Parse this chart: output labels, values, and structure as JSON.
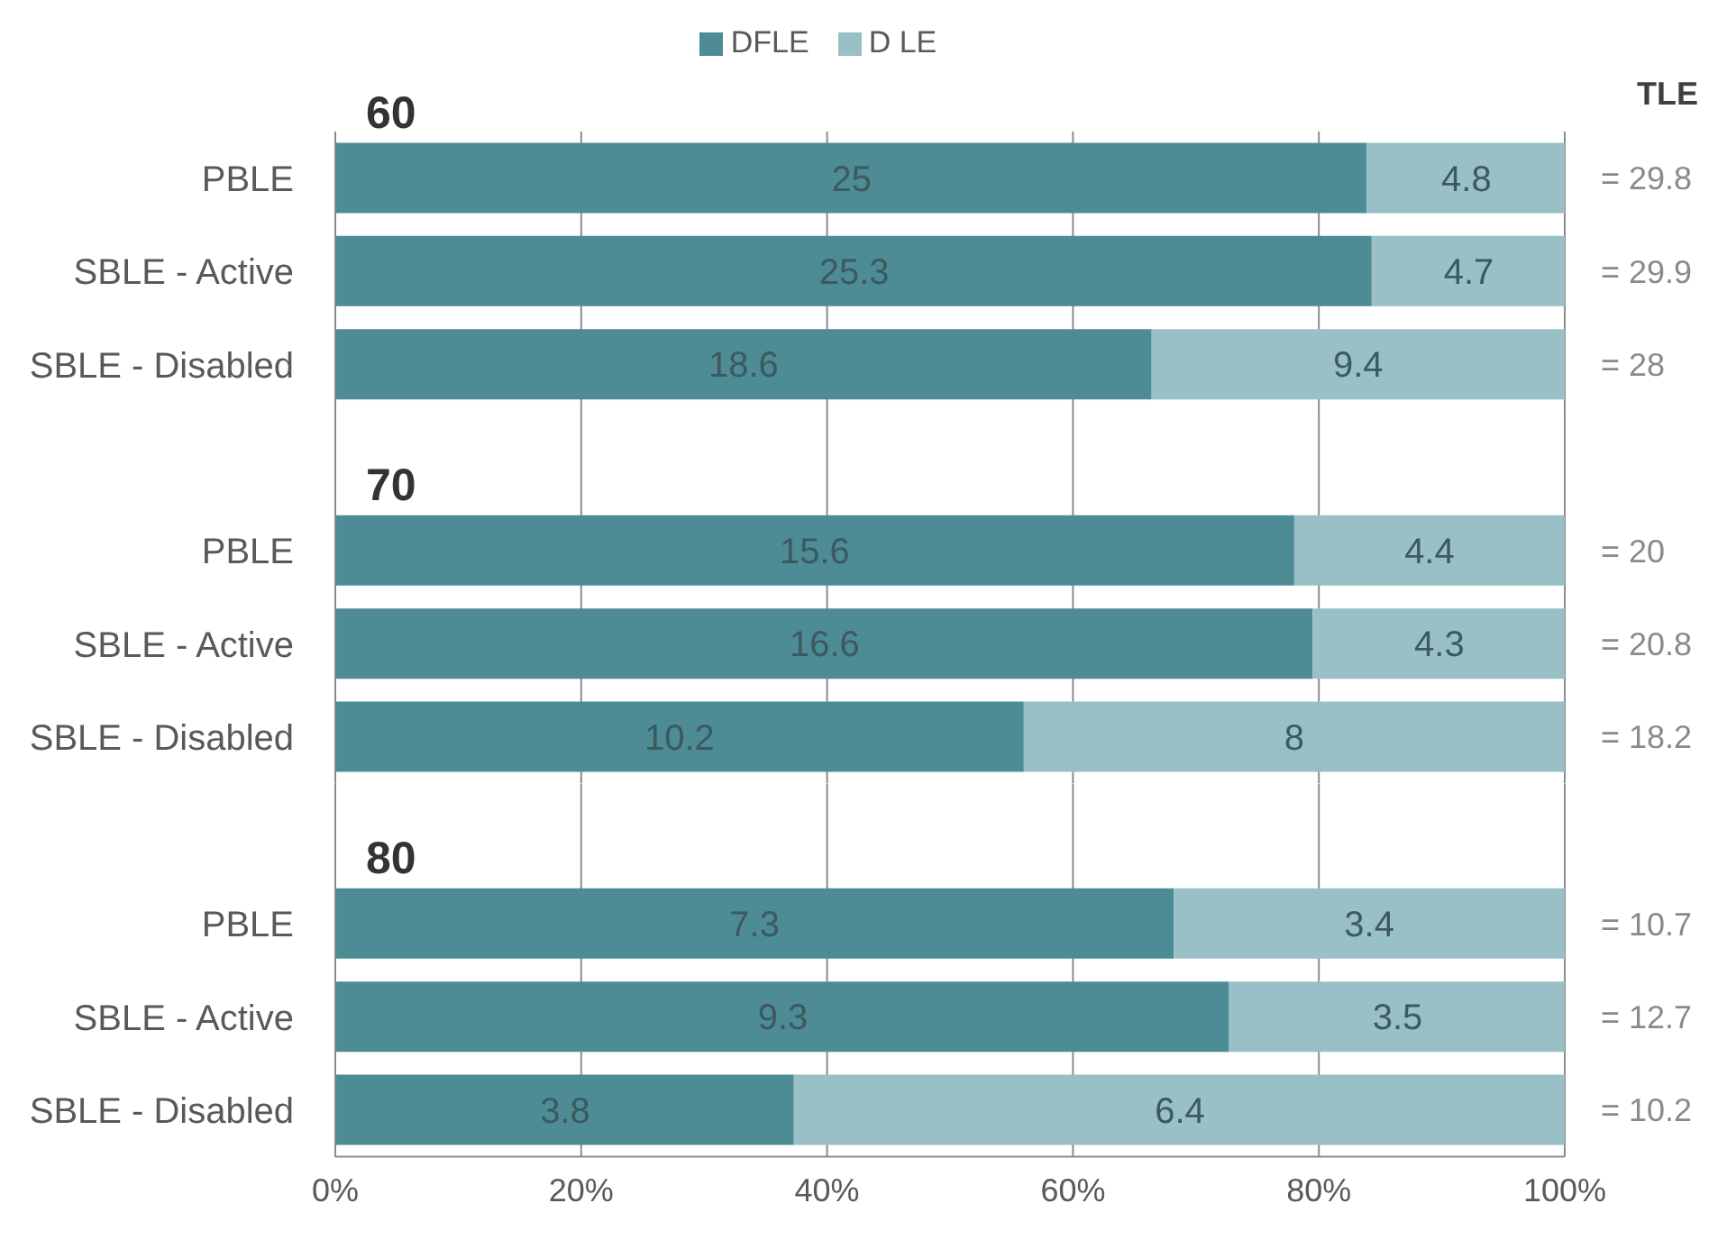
{
  "chart_data": [
    {
      "type": "bar",
      "orientation": "horizontal",
      "stacked": true,
      "title": "60",
      "categories": [
        "PBLE",
        "SBLE - Active",
        "SBLE - Disabled"
      ],
      "series": [
        {
          "name": "DFLE",
          "color": "#4d8b95",
          "values": [
            83.9,
            84.3,
            66.4
          ]
        },
        {
          "name": "D LE",
          "color": "#98c0c6",
          "values": [
            16.1,
            15.7,
            33.6
          ]
        }
      ],
      "xlim": [
        0,
        100
      ],
      "xticks": [
        {
          "value": 0,
          "label": null
        },
        {
          "value": 20,
          "label": null
        },
        {
          "value": 40,
          "label": null
        },
        {
          "value": 60,
          "label": null
        },
        {
          "value": 80,
          "label": null
        },
        {
          "value": 100,
          "label": null
        }
      ],
      "grid": "x",
      "legend": "top",
      "tick_labels": "y",
      "annotations": [
        "TLE",
        {
          "text": "25",
          "x": 42.0,
          "y": "PBLE"
        },
        {
          "text": "4.8",
          "x": 92.0,
          "y": "PBLE"
        },
        {
          "text": "= 29.8",
          "x": 100,
          "y": "PBLE"
        },
        {
          "text": "25.3",
          "x": 42.2,
          "y": "SBLE - Active"
        },
        {
          "text": "4.7",
          "x": 92.2,
          "y": "SBLE - Active"
        },
        {
          "text": "= 29.9",
          "x": 100,
          "y": "SBLE - Active"
        },
        {
          "text": "18.6",
          "x": 33.2,
          "y": "SBLE - Disabled"
        },
        {
          "text": "9.4",
          "x": 83.2,
          "y": "SBLE - Disabled"
        },
        {
          "text": "= 28",
          "x": 100,
          "y": "SBLE - Disabled"
        }
      ]
    },
    {
      "type": "bar",
      "orientation": "horizontal",
      "stacked": true,
      "title": "70",
      "categories": [
        "PBLE",
        "SBLE - Active",
        "SBLE - Disabled"
      ],
      "series": [
        {
          "color": "#4d8b95",
          "values": [
            78.0,
            79.5,
            56.0
          ]
        },
        {
          "color": "#98c0c6",
          "values": [
            22.0,
            20.5,
            44.0
          ]
        }
      ],
      "xlim": [
        0,
        100
      ],
      "xticks": [
        {
          "value": 0,
          "label": null
        },
        {
          "value": 20,
          "label": null
        },
        {
          "value": 40,
          "label": null
        },
        {
          "value": 60,
          "label": null
        },
        {
          "value": 80,
          "label": null
        },
        {
          "value": 100,
          "label": null
        }
      ],
      "grid": "x",
      "tick_labels": "y",
      "annotations": [
        {
          "text": "15.6",
          "x": 39.0,
          "y": "PBLE"
        },
        {
          "text": "4.4",
          "x": 89.0,
          "y": "PBLE"
        },
        {
          "text": "= 20",
          "x": 100,
          "y": "PBLE"
        },
        {
          "text": "16.6",
          "x": 39.8,
          "y": "SBLE - Active"
        },
        {
          "text": "4.3",
          "x": 89.8,
          "y": "SBLE - Active"
        },
        {
          "text": "= 20.8",
          "x": 100,
          "y": "SBLE - Active"
        },
        {
          "text": "10.2",
          "x": 28.0,
          "y": "SBLE - Disabled"
        },
        {
          "text": "8",
          "x": 78.0,
          "y": "SBLE - Disabled"
        },
        {
          "text": "= 18.2",
          "x": 100,
          "y": "SBLE - Disabled"
        }
      ]
    },
    {
      "type": "bar",
      "orientation": "horizontal",
      "stacked": true,
      "title": "80",
      "categories": [
        "PBLE",
        "SBLE - Active",
        "SBLE - Disabled"
      ],
      "series": [
        {
          "color": "#4d8b95",
          "values": [
            68.2,
            72.7,
            37.3
          ]
        },
        {
          "color": "#98c0c6",
          "values": [
            31.8,
            27.3,
            62.7
          ]
        }
      ],
      "xlim": [
        0,
        100
      ],
      "xticks": [
        {
          "value": 0,
          "label": "0%"
        },
        {
          "value": 20,
          "label": "20%"
        },
        {
          "value": 40,
          "label": "40%"
        },
        {
          "value": 60,
          "label": "60%"
        },
        {
          "value": 80,
          "label": "80%"
        },
        {
          "value": 100,
          "label": "100%"
        }
      ],
      "grid": "x",
      "annotations": [
        {
          "text": "7.3",
          "x": 34.1,
          "y": "PBLE"
        },
        {
          "text": "3.4",
          "x": 84.1,
          "y": "PBLE"
        },
        {
          "text": "= 10.7",
          "x": 100,
          "y": "PBLE"
        },
        {
          "text": "9.3",
          "x": 36.4,
          "y": "SBLE - Active"
        },
        {
          "text": "3.5",
          "x": 86.4,
          "y": "SBLE - Active"
        },
        {
          "text": "= 12.7",
          "x": 100,
          "y": "SBLE - Active"
        },
        {
          "text": "3.8",
          "x": 18.7,
          "y": "SBLE - Disabled"
        },
        {
          "text": "6.4",
          "x": 68.7,
          "y": "SBLE - Disabled"
        },
        {
          "text": "= 10.2",
          "x": 100,
          "y": "SBLE - Disabled"
        }
      ]
    }
  ]
}
